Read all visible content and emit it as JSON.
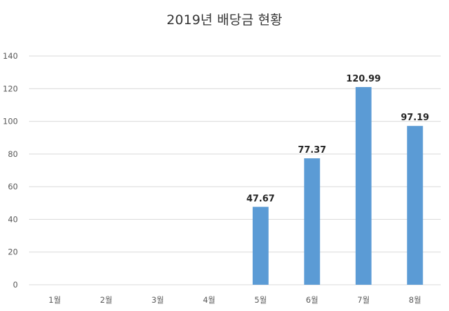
{
  "chart_data": {
    "type": "bar",
    "title": "2019년 배당금 현황",
    "categories": [
      "1월",
      "2월",
      "3월",
      "4월",
      "5월",
      "6월",
      "7월",
      "8월"
    ],
    "values": [
      null,
      null,
      null,
      null,
      47.67,
      77.37,
      120.99,
      97.19
    ],
    "data_labels": [
      "",
      "",
      "",
      "",
      "47.67",
      "77.37",
      "120.99",
      "97.19"
    ],
    "ylim": [
      0,
      140
    ],
    "yticks": [
      0,
      20,
      40,
      60,
      80,
      100,
      120,
      140
    ],
    "ytick_labels": [
      "0",
      "20",
      "40",
      "60",
      "80",
      "100",
      "120",
      "140"
    ],
    "grid": true,
    "legend": "none",
    "bar_color": "#5b9bd5",
    "grid_color": "#d9d9d9"
  }
}
